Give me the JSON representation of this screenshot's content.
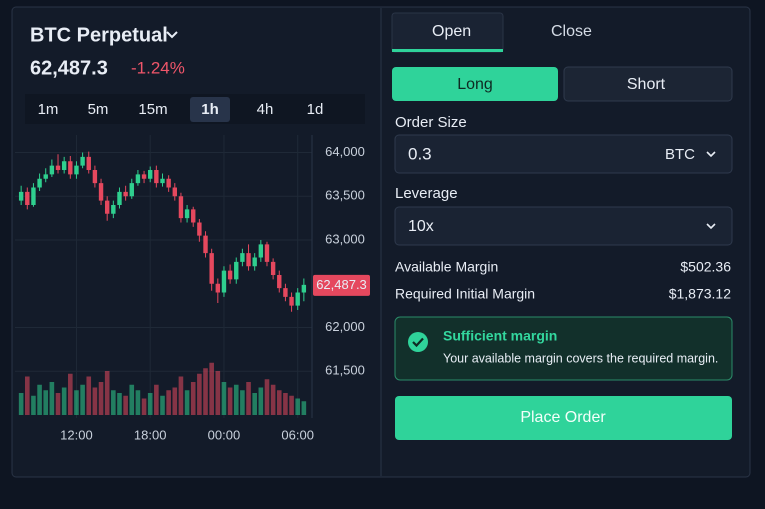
{
  "header": {
    "symbol": "BTC Perpetual",
    "price": "62,487.3",
    "change": "-1.24%"
  },
  "timeframes": [
    "1m",
    "5m",
    "15m",
    "1h",
    "4h",
    "1d"
  ],
  "active_timeframe": "1h",
  "chart_data": {
    "type": "candlestick",
    "up_color": "#2fcf8f",
    "down_color": "#e5485e",
    "x": [
      7.5,
      8,
      8.5,
      9,
      9.5,
      10,
      10.5,
      11,
      11.5,
      12,
      12.5,
      13,
      13.5,
      14,
      14.5,
      15,
      15.5,
      16,
      16.5,
      17,
      17.5,
      18,
      18.5,
      19,
      19.5,
      20,
      20.5,
      21,
      21.5,
      22,
      22.5,
      23,
      23.5,
      24,
      24.5,
      25,
      25.5,
      26,
      26.5,
      27,
      27.5,
      28,
      28.5,
      29,
      29.5,
      30,
      30.5
    ],
    "open": [
      63450,
      63550,
      63400,
      63600,
      63700,
      63750,
      63850,
      63800,
      63900,
      63750,
      63850,
      63950,
      63800,
      63650,
      63450,
      63300,
      63400,
      63550,
      63500,
      63650,
      63750,
      63700,
      63800,
      63650,
      63700,
      63600,
      63500,
      63250,
      63350,
      63200,
      63050,
      62850,
      62500,
      62400,
      62650,
      62550,
      62750,
      62850,
      62700,
      62800,
      62950,
      62750,
      62600,
      62450,
      62350,
      62250,
      62400
    ],
    "high": [
      63620,
      63600,
      63650,
      63760,
      63820,
      63920,
      63980,
      63950,
      63960,
      63900,
      64000,
      64010,
      63850,
      63700,
      63500,
      63450,
      63600,
      63620,
      63700,
      63800,
      63790,
      63840,
      63850,
      63760,
      63740,
      63650,
      63540,
      63400,
      63380,
      63240,
      63100,
      62900,
      62560,
      62700,
      62720,
      62800,
      62900,
      62950,
      62850,
      63000,
      62980,
      62790,
      62650,
      62500,
      62400,
      62450,
      62560
    ],
    "low": [
      63400,
      63350,
      63380,
      63560,
      63660,
      63720,
      63760,
      63760,
      63700,
      63700,
      63820,
      63760,
      63600,
      63400,
      63220,
      63250,
      63360,
      63450,
      63470,
      63620,
      63650,
      63660,
      63600,
      63610,
      63550,
      63450,
      63200,
      63200,
      63150,
      62980,
      62800,
      62420,
      62280,
      62350,
      62500,
      62500,
      62700,
      62650,
      62650,
      62750,
      62700,
      62550,
      62400,
      62300,
      62180,
      62200,
      62300
    ],
    "close": [
      63550,
      63400,
      63600,
      63700,
      63750,
      63850,
      63800,
      63900,
      63750,
      63850,
      63950,
      63800,
      63650,
      63450,
      63300,
      63400,
      63550,
      63500,
      63650,
      63750,
      63700,
      63800,
      63650,
      63700,
      63600,
      63500,
      63250,
      63350,
      63200,
      63050,
      62850,
      62500,
      62400,
      62650,
      62550,
      62750,
      62850,
      62700,
      62800,
      62950,
      62750,
      62600,
      62450,
      62350,
      62250,
      62400,
      62487.3
    ],
    "volume": [
      40,
      70,
      35,
      55,
      45,
      60,
      40,
      50,
      75,
      45,
      55,
      70,
      50,
      60,
      80,
      45,
      40,
      35,
      55,
      45,
      30,
      40,
      55,
      35,
      45,
      50,
      70,
      45,
      60,
      75,
      85,
      95,
      80,
      60,
      50,
      55,
      45,
      60,
      40,
      50,
      65,
      55,
      45,
      40,
      35,
      30,
      25
    ],
    "vlim": [
      0,
      100
    ],
    "xlim": [
      7,
      31
    ],
    "ylim": [
      61000,
      64200
    ],
    "xticks": [
      {
        "value": 12,
        "label": "12:00"
      },
      {
        "value": 18,
        "label": "18:00"
      },
      {
        "value": 24,
        "label": "00:00"
      },
      {
        "value": 30,
        "label": "06:00"
      }
    ],
    "yticks": [
      {
        "value": 64000,
        "label": "64,000"
      },
      {
        "value": 63500,
        "label": "63,500"
      },
      {
        "value": 63000,
        "label": "63,000"
      },
      {
        "value": 62000,
        "label": "62,000"
      },
      {
        "value": 61500,
        "label": "61,500"
      }
    ],
    "last_price": {
      "value": 62487.3,
      "label": "62,487.3"
    },
    "grid": true
  },
  "order": {
    "tabs": [
      "Open",
      "Close"
    ],
    "sides": [
      "Long",
      "Short"
    ],
    "order_size_label": "Order Size",
    "order_size": "0.3",
    "order_unit": "BTC",
    "leverage_label": "Leverage",
    "leverage": "10x",
    "available_margin_label": "Available Margin",
    "available_margin": "$502.36",
    "required_margin_label": "Required Initial Margin",
    "required_margin": "$1,873.12",
    "notice_title": "Sufficient margin",
    "notice_text": "Your available margin covers the required margin.",
    "submit": "Place Order"
  }
}
